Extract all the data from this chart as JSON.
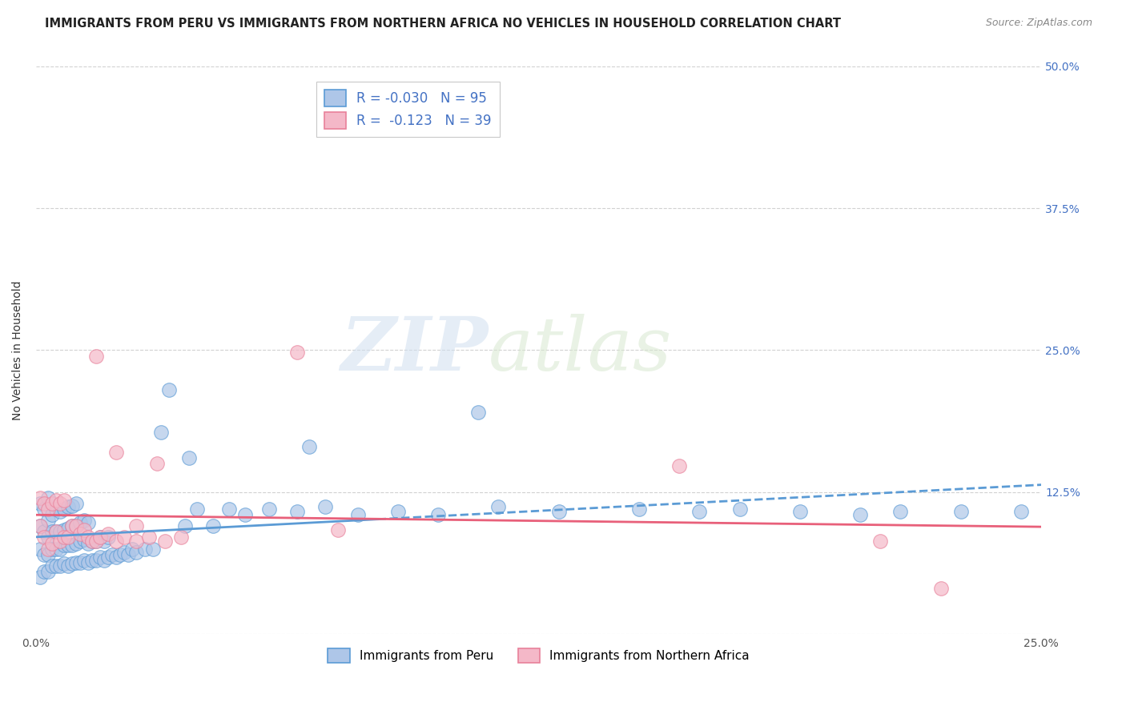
{
  "title": "IMMIGRANTS FROM PERU VS IMMIGRANTS FROM NORTHERN AFRICA NO VEHICLES IN HOUSEHOLD CORRELATION CHART",
  "source": "Source: ZipAtlas.com",
  "ylabel": "No Vehicles in Household",
  "xlim": [
    0.0,
    0.25
  ],
  "ylim": [
    0.0,
    0.5
  ],
  "xticks": [
    0.0,
    0.05,
    0.1,
    0.15,
    0.2,
    0.25
  ],
  "yticks": [
    0.0,
    0.125,
    0.25,
    0.375,
    0.5
  ],
  "xtick_labels": [
    "0.0%",
    "",
    "",
    "",
    "",
    "25.0%"
  ],
  "ytick_labels_right": [
    "",
    "12.5%",
    "25.0%",
    "37.5%",
    "50.0%"
  ],
  "peru_R": -0.03,
  "peru_N": 95,
  "nafrica_R": -0.123,
  "nafrica_N": 39,
  "peru_color": "#aec6e8",
  "nafrica_color": "#f4b8c8",
  "peru_edge_color": "#5b9bd5",
  "nafrica_edge_color": "#e8809a",
  "peru_line_color": "#5b9bd5",
  "nafrica_line_color": "#e8607a",
  "legend_peru_label": "Immigrants from Peru",
  "legend_nafrica_label": "Immigrants from Northern Africa",
  "watermark_zip": "ZIP",
  "watermark_atlas": "atlas",
  "background_color": "#ffffff",
  "grid_color": "#cccccc",
  "title_fontsize": 10.5,
  "axis_label_fontsize": 10,
  "tick_fontsize": 10,
  "legend_fontsize": 11,
  "peru_scatter_x": [
    0.001,
    0.001,
    0.001,
    0.001,
    0.002,
    0.002,
    0.002,
    0.002,
    0.003,
    0.003,
    0.003,
    0.003,
    0.003,
    0.004,
    0.004,
    0.004,
    0.004,
    0.005,
    0.005,
    0.005,
    0.005,
    0.006,
    0.006,
    0.006,
    0.006,
    0.007,
    0.007,
    0.007,
    0.007,
    0.008,
    0.008,
    0.008,
    0.008,
    0.009,
    0.009,
    0.009,
    0.009,
    0.01,
    0.01,
    0.01,
    0.01,
    0.011,
    0.011,
    0.011,
    0.012,
    0.012,
    0.012,
    0.013,
    0.013,
    0.013,
    0.014,
    0.014,
    0.015,
    0.015,
    0.016,
    0.016,
    0.017,
    0.017,
    0.018,
    0.018,
    0.019,
    0.02,
    0.021,
    0.022,
    0.023,
    0.024,
    0.025,
    0.027,
    0.029,
    0.031,
    0.033,
    0.037,
    0.04,
    0.044,
    0.048,
    0.052,
    0.058,
    0.065,
    0.072,
    0.08,
    0.09,
    0.1,
    0.115,
    0.13,
    0.15,
    0.165,
    0.175,
    0.19,
    0.205,
    0.215,
    0.23,
    0.245,
    0.11,
    0.068,
    0.038
  ],
  "peru_scatter_y": [
    0.05,
    0.075,
    0.095,
    0.115,
    0.055,
    0.07,
    0.09,
    0.11,
    0.055,
    0.07,
    0.085,
    0.1,
    0.12,
    0.06,
    0.075,
    0.09,
    0.105,
    0.06,
    0.075,
    0.09,
    0.11,
    0.06,
    0.075,
    0.09,
    0.108,
    0.062,
    0.078,
    0.092,
    0.11,
    0.06,
    0.078,
    0.093,
    0.112,
    0.062,
    0.078,
    0.095,
    0.113,
    0.063,
    0.08,
    0.095,
    0.115,
    0.063,
    0.082,
    0.098,
    0.065,
    0.083,
    0.1,
    0.063,
    0.08,
    0.098,
    0.065,
    0.082,
    0.065,
    0.082,
    0.068,
    0.085,
    0.065,
    0.082,
    0.068,
    0.085,
    0.07,
    0.068,
    0.07,
    0.072,
    0.07,
    0.075,
    0.072,
    0.075,
    0.075,
    0.178,
    0.215,
    0.095,
    0.11,
    0.095,
    0.11,
    0.105,
    0.11,
    0.108,
    0.112,
    0.105,
    0.108,
    0.105,
    0.112,
    0.108,
    0.11,
    0.108,
    0.11,
    0.108,
    0.105,
    0.108,
    0.108,
    0.108,
    0.195,
    0.165,
    0.155
  ],
  "nafrica_scatter_x": [
    0.001,
    0.001,
    0.002,
    0.002,
    0.003,
    0.003,
    0.004,
    0.004,
    0.005,
    0.005,
    0.006,
    0.006,
    0.007,
    0.007,
    0.008,
    0.009,
    0.01,
    0.011,
    0.012,
    0.013,
    0.014,
    0.015,
    0.016,
    0.018,
    0.02,
    0.022,
    0.025,
    0.028,
    0.032,
    0.036,
    0.015,
    0.02,
    0.025,
    0.03,
    0.065,
    0.075,
    0.16,
    0.21,
    0.225
  ],
  "nafrica_scatter_y": [
    0.095,
    0.12,
    0.085,
    0.115,
    0.075,
    0.11,
    0.08,
    0.115,
    0.09,
    0.118,
    0.082,
    0.115,
    0.085,
    0.118,
    0.085,
    0.095,
    0.095,
    0.088,
    0.092,
    0.085,
    0.082,
    0.082,
    0.085,
    0.088,
    0.082,
    0.085,
    0.082,
    0.085,
    0.082,
    0.085,
    0.245,
    0.16,
    0.095,
    0.15,
    0.248,
    0.092,
    0.148,
    0.082,
    0.04
  ]
}
